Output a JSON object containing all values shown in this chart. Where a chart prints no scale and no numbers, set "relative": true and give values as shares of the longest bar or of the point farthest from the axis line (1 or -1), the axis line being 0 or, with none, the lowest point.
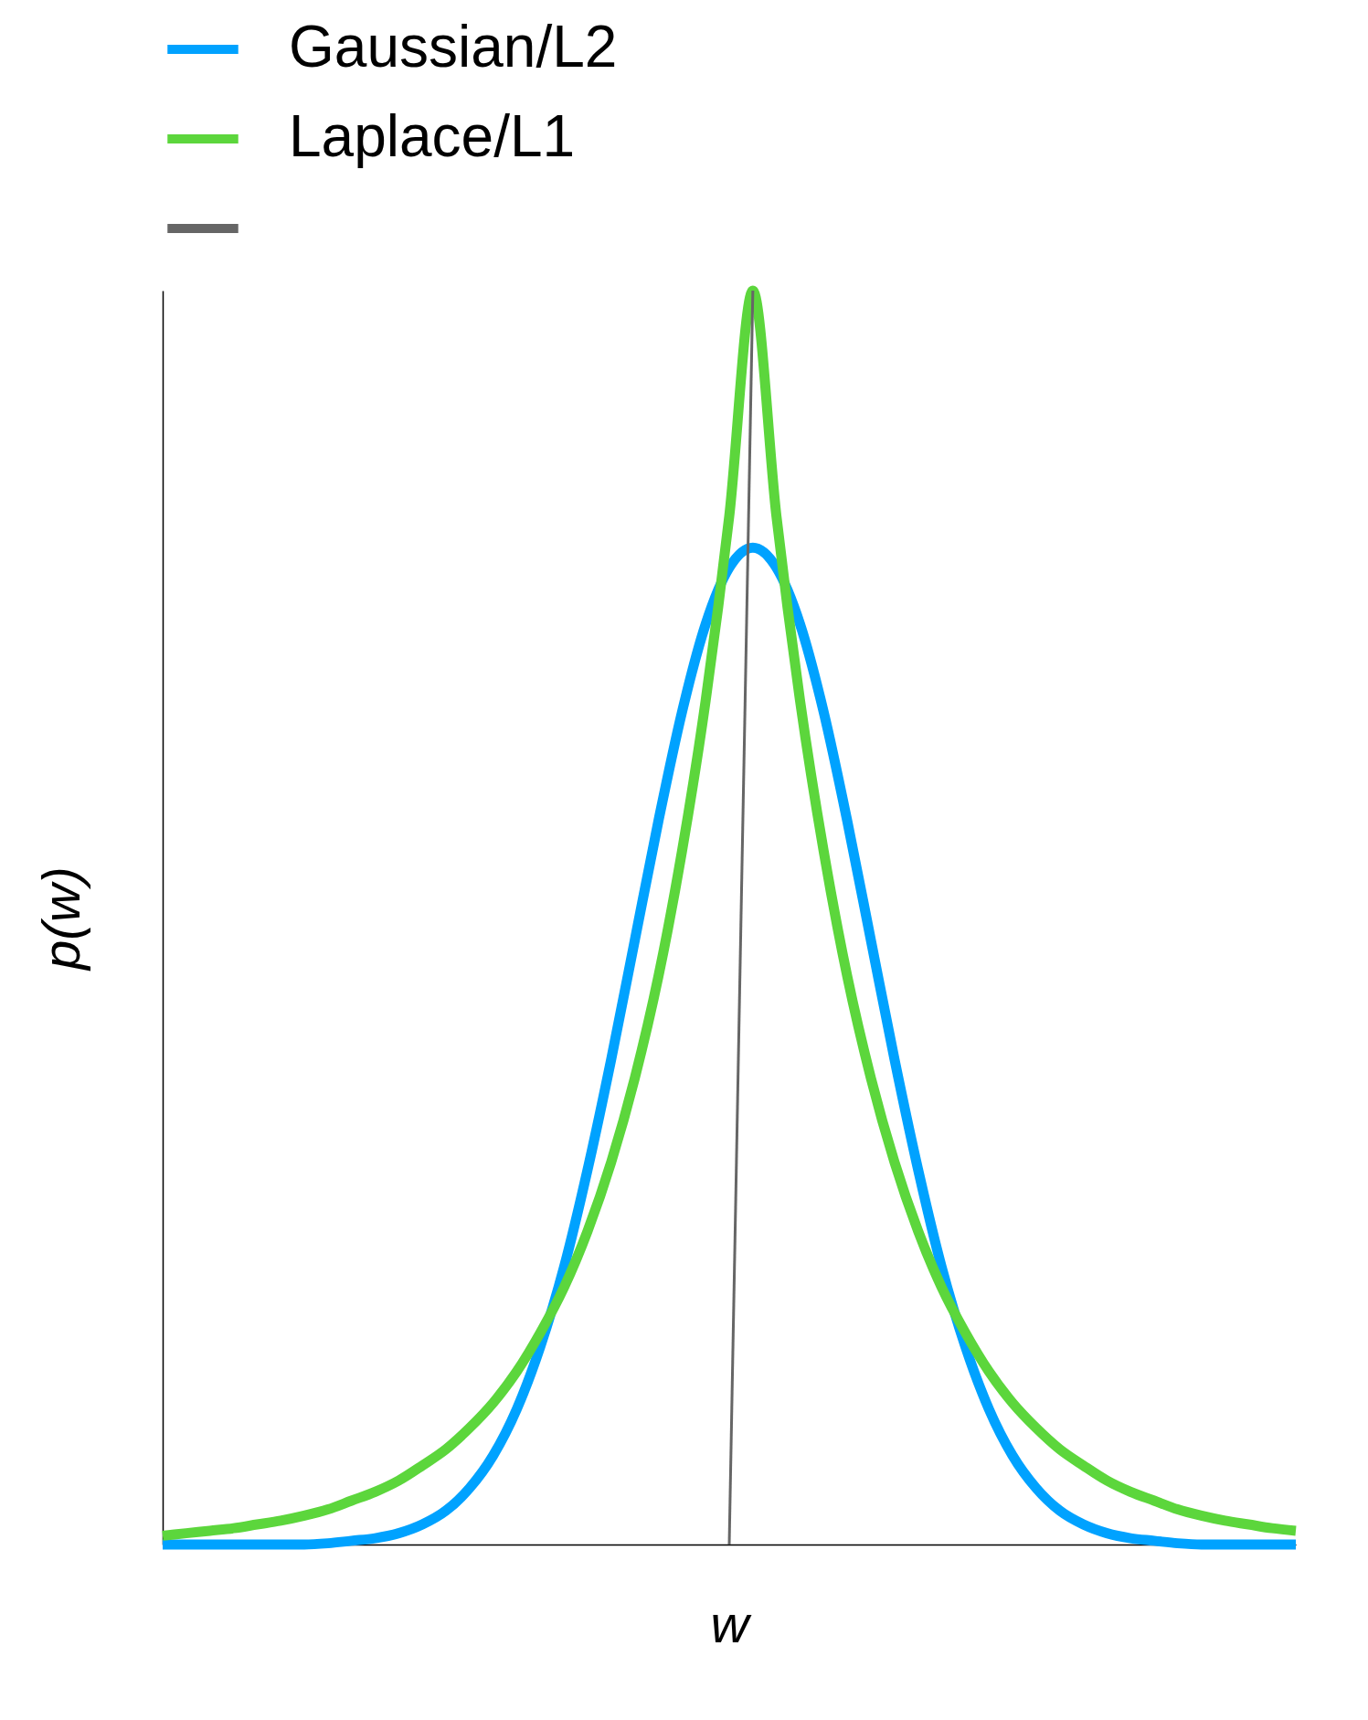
{
  "chart_data": {
    "type": "line",
    "relative": true,
    "xlabel": "w",
    "ylabel": "p(w)",
    "tick_labels": false,
    "grid": false,
    "legend": "top",
    "marker": "none",
    "line_style": "solid",
    "categories": [
      null,
      null,
      null,
      null,
      null,
      null,
      null,
      null,
      null,
      null,
      null,
      null,
      null,
      null,
      null,
      null,
      null,
      null,
      null,
      null,
      null,
      null,
      null,
      null,
      null,
      null,
      null,
      null,
      null,
      null,
      null,
      null,
      null,
      null,
      null,
      null,
      null,
      null,
      null,
      null,
      null,
      null,
      null,
      null,
      null,
      null,
      null,
      null,
      null
    ],
    "series": [
      {
        "name": "Gaussian/L2",
        "color": "#00a2ff",
        "values": [
          0,
          0,
          0,
          0,
          0,
          0,
          0,
          0.001,
          0.003,
          0.005,
          0.009,
          0.016,
          0.027,
          0.045,
          0.071,
          0.108,
          0.158,
          0.221,
          0.299,
          0.387,
          0.482,
          0.577,
          0.664,
          0.734,
          0.779,
          0.795,
          0.779,
          0.734,
          0.664,
          0.577,
          0.482,
          0.387,
          0.299,
          0.221,
          0.158,
          0.108,
          0.071,
          0.045,
          0.027,
          0.016,
          0.009,
          0.005,
          0.003,
          0.001,
          0,
          0,
          0,
          0,
          0
        ]
      },
      {
        "name": "Laplace/L1",
        "color": "#5cd63c",
        "values": [
          0.007,
          0.009,
          0.011,
          0.013,
          0.016,
          0.019,
          0.023,
          0.028,
          0.035,
          0.042,
          0.051,
          0.063,
          0.076,
          0.093,
          0.113,
          0.138,
          0.169,
          0.205,
          0.25,
          0.305,
          0.372,
          0.453,
          0.553,
          0.673,
          0.82,
          1,
          0.82,
          0.673,
          0.553,
          0.453,
          0.372,
          0.305,
          0.25,
          0.205,
          0.169,
          0.138,
          0.113,
          0.093,
          0.076,
          0.063,
          0.051,
          0.042,
          0.035,
          0.028,
          0.023,
          0.019,
          0.016,
          0.013,
          0.011
        ]
      },
      {
        "color": "#666666",
        "values": [
          null,
          null,
          null,
          null,
          null,
          null,
          null,
          null,
          null,
          null,
          null,
          null,
          null,
          null,
          null,
          null,
          null,
          null,
          null,
          null,
          null,
          null,
          null,
          null,
          0,
          1,
          null,
          null,
          null,
          null,
          null,
          null,
          null,
          null,
          null,
          null,
          null,
          null,
          null,
          null,
          null,
          null,
          null,
          null,
          null,
          null,
          null,
          null,
          null
        ]
      }
    ]
  }
}
